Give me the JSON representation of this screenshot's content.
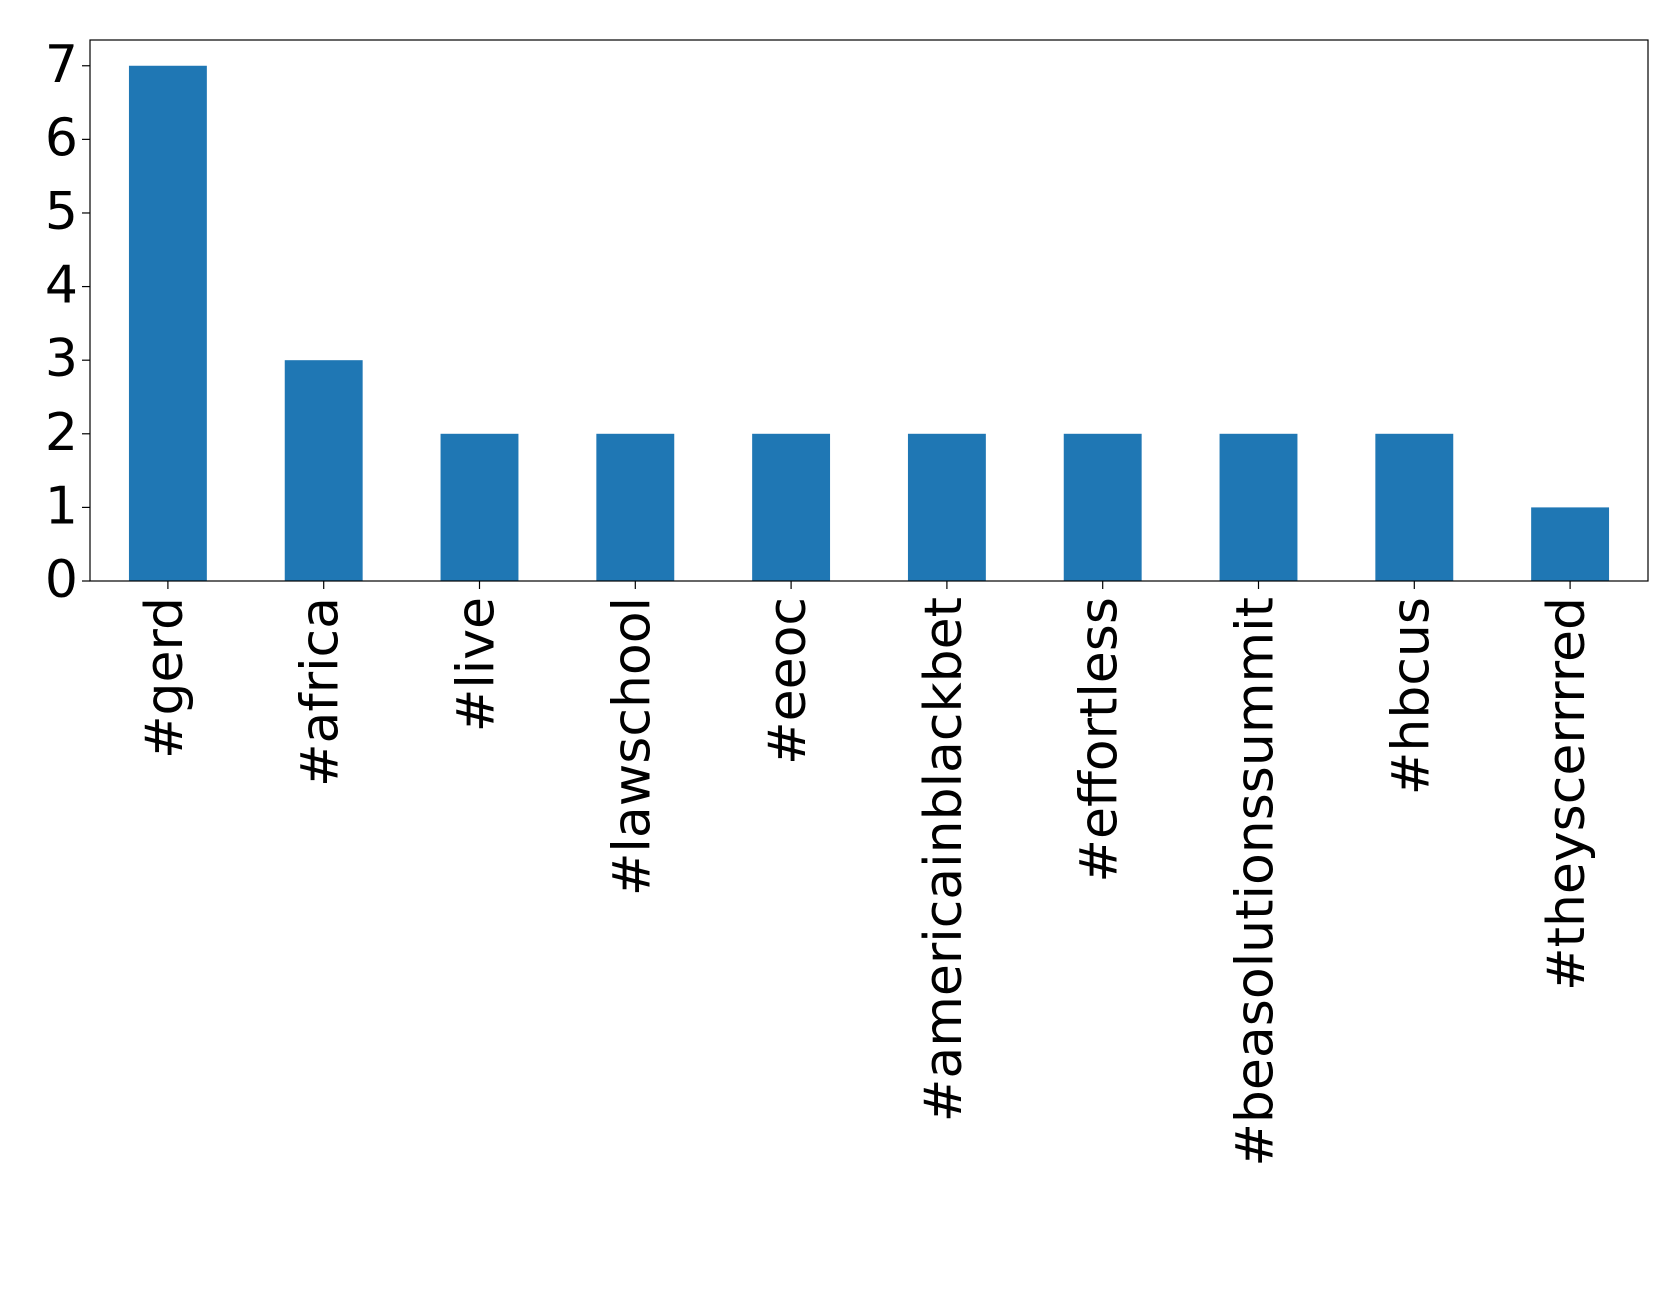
{
  "chart_data": {
    "type": "bar",
    "categories": [
      "#gerd",
      "#africa",
      "#live",
      "#lawschool",
      "#eeoc",
      "#americainblackbet",
      "#effortless",
      "#beasolutionssummit",
      "#hbcus",
      "#theyscerrrred"
    ],
    "values": [
      7,
      3,
      2,
      2,
      2,
      2,
      2,
      2,
      2,
      1
    ],
    "color": "#1f77b4",
    "ylim": [
      0,
      7.35
    ],
    "yticks": [
      0,
      1,
      2,
      3,
      4,
      5,
      6,
      7
    ],
    "grid": false
  }
}
